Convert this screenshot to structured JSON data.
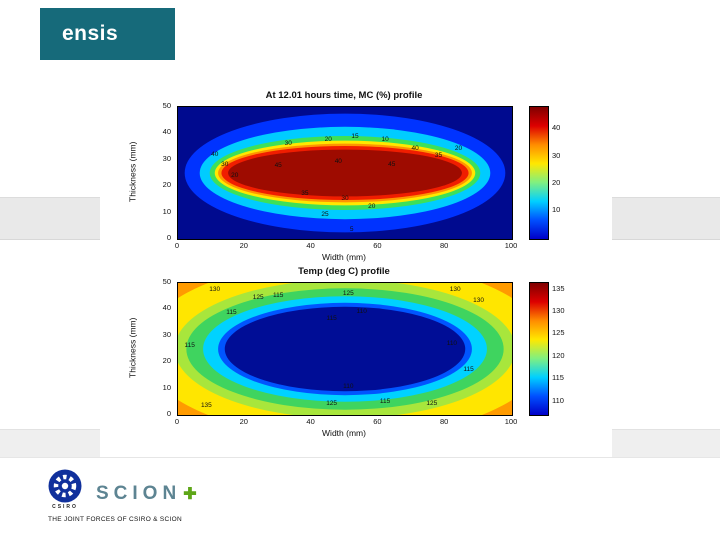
{
  "slide": {
    "brand": {
      "label": "ensis",
      "bg_color": "#166a7a"
    },
    "footer": {
      "csiro_label": "CSIRO",
      "scion_label": "SCION",
      "scion_plus": "✚",
      "tagline": "THE JOINT FORCES OF CSIRO & SCION"
    }
  },
  "chart_data": [
    {
      "type": "heatmap",
      "variant": "filled-contour",
      "title": "At 12.01 hours time, MC (%) profile",
      "xlabel": "Width (mm)",
      "ylabel": "Thickness (mm)",
      "xlim": [
        0,
        100
      ],
      "ylim": [
        0,
        50
      ],
      "xticks": [
        0,
        20,
        40,
        60,
        80,
        100
      ],
      "yticks": [
        0,
        10,
        20,
        30,
        40,
        50
      ],
      "grid": false,
      "legend": "colorbar-right",
      "layers": [
        {
          "background": true,
          "value_above": 0,
          "color": "#000a8f"
        },
        {
          "value_above": 5,
          "color": "#0033ff",
          "rx": 0.96,
          "ry": 0.9
        },
        {
          "value_above": 10,
          "color": "#00ccff",
          "rx": 0.87,
          "ry": 0.7
        },
        {
          "value_above": 15,
          "color": "#3de059",
          "rx": 0.81,
          "ry": 0.56
        },
        {
          "value_above": 20,
          "color": "#ffe800",
          "rx": 0.78,
          "ry": 0.49
        },
        {
          "value_above": 25,
          "color": "#ff9400",
          "rx": 0.76,
          "ry": 0.445
        },
        {
          "value_above": 30,
          "color": "#f01d00",
          "rx": 0.74,
          "ry": 0.41
        },
        {
          "value_above": 35,
          "color": "#9e0b00",
          "rx": 0.7,
          "ry": 0.355
        }
      ],
      "contour_labels": [
        {
          "x": 0.33,
          "y": 0.28,
          "t": "30"
        },
        {
          "x": 0.45,
          "y": 0.25,
          "t": "20"
        },
        {
          "x": 0.53,
          "y": 0.23,
          "t": "15"
        },
        {
          "x": 0.62,
          "y": 0.25,
          "t": "10"
        },
        {
          "x": 0.11,
          "y": 0.36,
          "t": "40"
        },
        {
          "x": 0.14,
          "y": 0.44,
          "t": "30"
        },
        {
          "x": 0.17,
          "y": 0.52,
          "t": "20"
        },
        {
          "x": 0.84,
          "y": 0.32,
          "t": "20"
        },
        {
          "x": 0.78,
          "y": 0.37,
          "t": "35"
        },
        {
          "x": 0.71,
          "y": 0.32,
          "t": "40"
        },
        {
          "x": 0.3,
          "y": 0.45,
          "t": "45"
        },
        {
          "x": 0.48,
          "y": 0.42,
          "t": "40"
        },
        {
          "x": 0.64,
          "y": 0.44,
          "t": "45"
        },
        {
          "x": 0.38,
          "y": 0.66,
          "t": "35"
        },
        {
          "x": 0.5,
          "y": 0.7,
          "t": "30"
        },
        {
          "x": 0.58,
          "y": 0.76,
          "t": "20"
        },
        {
          "x": 0.44,
          "y": 0.82,
          "t": "25"
        },
        {
          "x": 0.52,
          "y": 0.93,
          "t": "5"
        }
      ],
      "colorbar": {
        "ticks": [
          40,
          30,
          20,
          10
        ],
        "range": [
          0,
          48
        ],
        "colors": [
          "#7f0000",
          "#dd0000",
          "#ff8c00",
          "#ffe800",
          "#80f080",
          "#00d0ff",
          "#0050ff",
          "#0000c8"
        ]
      }
    },
    {
      "type": "heatmap",
      "variant": "filled-contour",
      "title": "Temp (deg C) profile",
      "xlabel": "Width (mm)",
      "ylabel": "Thickness (mm)",
      "xlim": [
        0,
        100
      ],
      "ylim": [
        0,
        50
      ],
      "xticks": [
        0,
        20,
        40,
        60,
        80,
        100
      ],
      "yticks": [
        0,
        10,
        20,
        30,
        40,
        50
      ],
      "grid": false,
      "legend": "colorbar-right",
      "layers": [
        {
          "background": true,
          "value_below": 135,
          "color": "#ff9b00"
        },
        {
          "value_below": 130,
          "color": "#ffe600",
          "rx": 1.22,
          "ry": 1.35
        },
        {
          "value_below": 125,
          "color": "#a8e63c",
          "rx": 1.02,
          "ry": 1.05
        },
        {
          "value_below": 120,
          "color": "#3fd45f",
          "rx": 0.95,
          "ry": 0.92
        },
        {
          "value_below": 115,
          "color": "#00d2ff",
          "rx": 0.85,
          "ry": 0.8
        },
        {
          "value_below": 112,
          "color": "#0055ff",
          "rx": 0.76,
          "ry": 0.7
        },
        {
          "value_below": 110,
          "color": "#000d96",
          "rx": 0.72,
          "ry": 0.64
        }
      ],
      "contour_labels": [
        {
          "x": 0.11,
          "y": 0.05,
          "t": "130"
        },
        {
          "x": 0.24,
          "y": 0.11,
          "t": "125"
        },
        {
          "x": 0.16,
          "y": 0.23,
          "t": "115"
        },
        {
          "x": 0.3,
          "y": 0.1,
          "t": "115"
        },
        {
          "x": 0.51,
          "y": 0.08,
          "t": "125"
        },
        {
          "x": 0.55,
          "y": 0.22,
          "t": "110"
        },
        {
          "x": 0.46,
          "y": 0.27,
          "t": "115"
        },
        {
          "x": 0.83,
          "y": 0.05,
          "t": "130"
        },
        {
          "x": 0.9,
          "y": 0.14,
          "t": "130"
        },
        {
          "x": 0.82,
          "y": 0.46,
          "t": "110"
        },
        {
          "x": 0.87,
          "y": 0.66,
          "t": "115"
        },
        {
          "x": 0.51,
          "y": 0.79,
          "t": "110"
        },
        {
          "x": 0.46,
          "y": 0.92,
          "t": "125"
        },
        {
          "x": 0.62,
          "y": 0.9,
          "t": "115"
        },
        {
          "x": 0.76,
          "y": 0.92,
          "t": "125"
        },
        {
          "x": 0.085,
          "y": 0.93,
          "t": "135"
        },
        {
          "x": 0.035,
          "y": 0.48,
          "t": "115"
        }
      ],
      "colorbar": {
        "ticks": [
          135,
          130,
          125,
          120,
          115,
          110
        ],
        "range": [
          107,
          136.5
        ],
        "colors": [
          "#7f0000",
          "#dd0000",
          "#ff8c00",
          "#ffe800",
          "#80f080",
          "#00d0ff",
          "#0050ff",
          "#0000c8"
        ]
      }
    }
  ]
}
